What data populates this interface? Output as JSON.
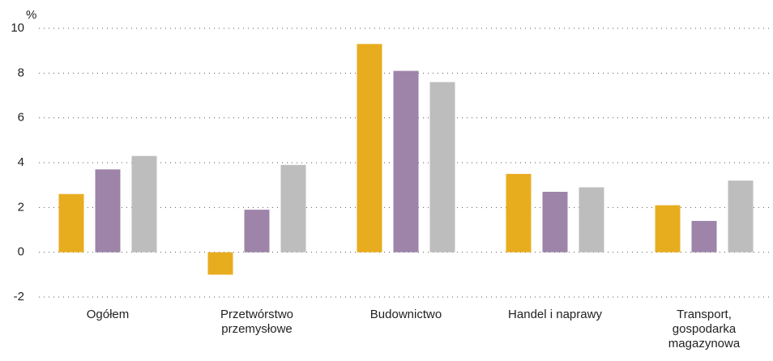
{
  "chart_data": {
    "type": "bar",
    "y_label": "%",
    "categories": [
      "Ogółem",
      "Przetwórstwo przemysłowe",
      "Budownictwo",
      "Handel i naprawy",
      "Transport, gospodarka magazynowa"
    ],
    "series": [
      {
        "color": "#e8ac1f",
        "values": [
          2.6,
          -1.0,
          9.3,
          3.5,
          2.1
        ]
      },
      {
        "color": "#9e84a8",
        "values": [
          3.7,
          1.9,
          8.1,
          2.7,
          1.4
        ]
      },
      {
        "color": "#bdbdbd",
        "values": [
          4.3,
          3.9,
          7.6,
          2.9,
          3.2
        ]
      }
    ],
    "ylim": [
      -2,
      10
    ],
    "yticks": [
      -2,
      0,
      2,
      4,
      6,
      8,
      10
    ],
    "grid": true
  }
}
